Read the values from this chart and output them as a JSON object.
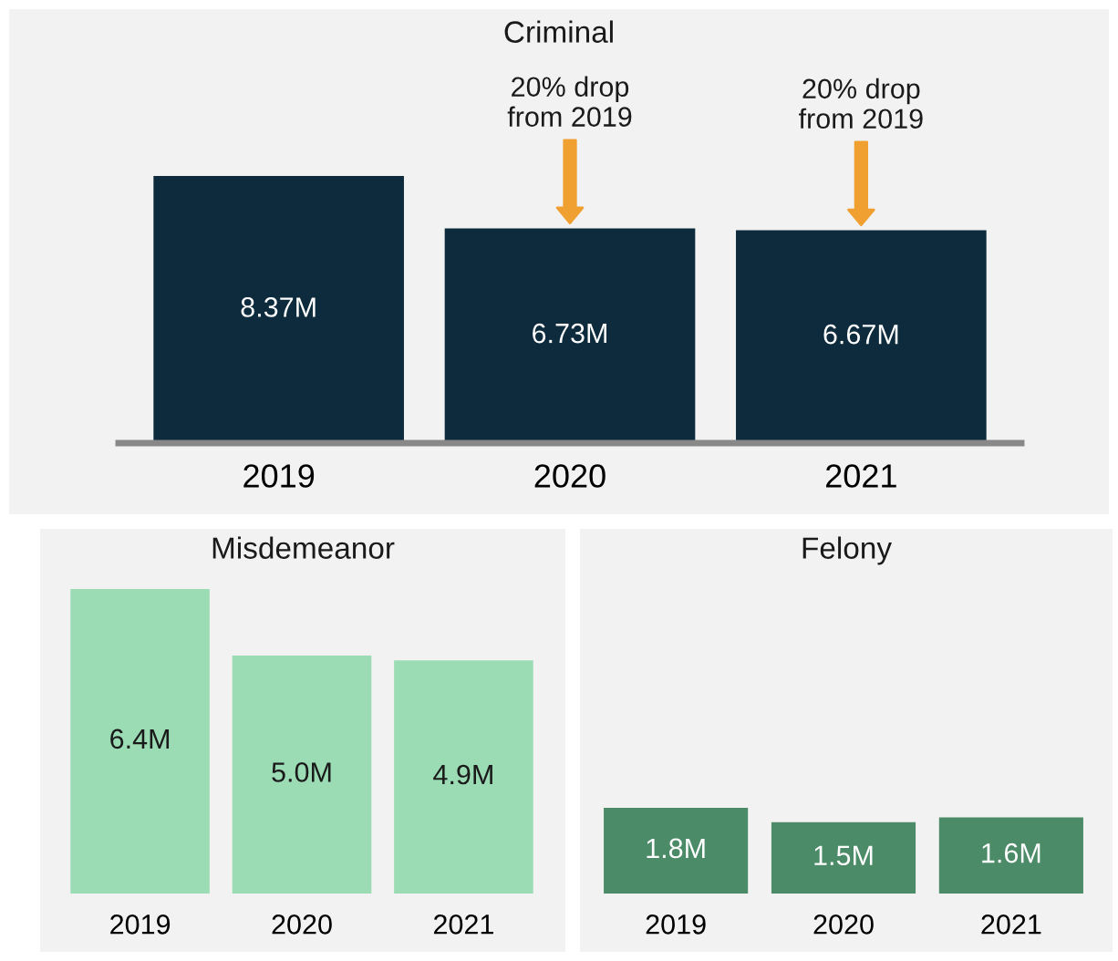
{
  "chart_data": [
    {
      "type": "bar",
      "title": "Criminal",
      "categories": [
        "2019",
        "2020",
        "2021"
      ],
      "values": [
        8.37,
        6.73,
        6.67
      ],
      "value_labels": [
        "8.37M",
        "6.73M",
        "6.67M"
      ],
      "color": "#0d2b3c",
      "annotations": [
        "20% drop\nfrom 2019",
        "20% drop\nfrom 2019"
      ]
    },
    {
      "type": "bar",
      "title": "Misdemeanor",
      "categories": [
        "2019",
        "2020",
        "2021"
      ],
      "values": [
        6.4,
        5.0,
        4.9
      ],
      "value_labels": [
        "6.4M",
        "5.0M",
        "4.9M"
      ],
      "color": "#9bdcb5"
    },
    {
      "type": "bar",
      "title": "Felony",
      "categories": [
        "2019",
        "2020",
        "2021"
      ],
      "values": [
        1.8,
        1.5,
        1.6
      ],
      "value_labels": [
        "1.8M",
        "1.5M",
        "1.6M"
      ],
      "color": "#4b8b67"
    }
  ]
}
